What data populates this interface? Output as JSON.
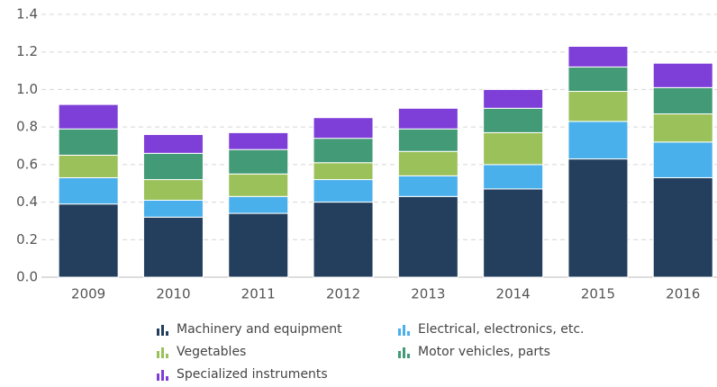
{
  "chart_data": {
    "type": "stacked_bar",
    "categories": [
      "2009",
      "2010",
      "2011",
      "2012",
      "2013",
      "2014",
      "2015",
      "2016"
    ],
    "series": [
      {
        "name": "Machinery and equipment",
        "color": "#243f5e",
        "values": [
          0.39,
          0.32,
          0.34,
          0.4,
          0.43,
          0.47,
          0.63,
          0.53
        ]
      },
      {
        "name": "Electrical, electronics, etc.",
        "color": "#4ab0ec",
        "values": [
          0.14,
          0.09,
          0.09,
          0.12,
          0.11,
          0.13,
          0.2,
          0.19
        ]
      },
      {
        "name": "Vegetables",
        "color": "#9bc15a",
        "values": [
          0.12,
          0.11,
          0.12,
          0.09,
          0.13,
          0.17,
          0.16,
          0.15
        ]
      },
      {
        "name": "Motor vehicles, parts",
        "color": "#439a76",
        "values": [
          0.14,
          0.14,
          0.13,
          0.13,
          0.12,
          0.13,
          0.13,
          0.14
        ]
      },
      {
        "name": "Specialized instruments",
        "color": "#7e3ed8",
        "values": [
          0.13,
          0.1,
          0.09,
          0.11,
          0.11,
          0.1,
          0.11,
          0.13
        ]
      }
    ],
    "ylim": [
      0,
      1.4
    ],
    "yticks": [
      {
        "value": 0,
        "label": "0.0"
      },
      0.2,
      0.4,
      0.6,
      0.8,
      {
        "value": 1,
        "label": "1.0"
      },
      1.2,
      1.4
    ],
    "grid": true
  }
}
